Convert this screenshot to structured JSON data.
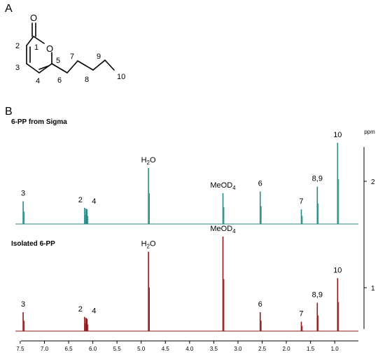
{
  "panels": {
    "a": "A",
    "b": "B"
  },
  "molecule": {
    "atoms": {
      "carbonyl_o": "O",
      "ring_o": "O"
    },
    "numbers": [
      "1",
      "2",
      "3",
      "4",
      "5",
      "6",
      "7",
      "8",
      "9",
      "10"
    ]
  },
  "chart_data": {
    "type": "line",
    "subtype": "nmr-spectrum",
    "xlabel": "ppm",
    "xlim": [
      7.6,
      0.8
    ],
    "x_reversed": true,
    "x_ticks": [
      "7.5",
      "7.0",
      "6.5",
      "6.0",
      "5.5",
      "5.0",
      "4.5",
      "4.0",
      "3.5",
      "3.0",
      "2.5",
      "2.0",
      "1.5",
      "1.0"
    ],
    "tracks": [
      "1",
      "2"
    ],
    "series": [
      {
        "name": "6-PP from Sigma",
        "color": "#2a8a86",
        "peaks": [
          {
            "ppm": 7.44,
            "height": 0.28,
            "label": "3"
          },
          {
            "ppm": 6.17,
            "height": 0.2,
            "label": "2"
          },
          {
            "ppm": 6.14,
            "height": 0.19,
            "label": ""
          },
          {
            "ppm": 6.12,
            "height": 0.18,
            "label": "4"
          },
          {
            "ppm": 4.85,
            "height": 0.69,
            "label": "H2O"
          },
          {
            "ppm": 3.31,
            "height": 0.38,
            "label": "MeOD4"
          },
          {
            "ppm": 2.54,
            "height": 0.4,
            "label": "6"
          },
          {
            "ppm": 1.69,
            "height": 0.18,
            "label": "7"
          },
          {
            "ppm": 1.36,
            "height": 0.46,
            "label": "8,9"
          },
          {
            "ppm": 0.94,
            "height": 1.0,
            "label": "10"
          }
        ]
      },
      {
        "name": "Isolated 6-PP",
        "color": "#8b1a1a",
        "peaks": [
          {
            "ppm": 7.44,
            "height": 0.2,
            "label": "3"
          },
          {
            "ppm": 6.17,
            "height": 0.15,
            "label": "2"
          },
          {
            "ppm": 6.14,
            "height": 0.14,
            "label": ""
          },
          {
            "ppm": 6.12,
            "height": 0.13,
            "label": "4"
          },
          {
            "ppm": 4.85,
            "height": 0.84,
            "label": "H2O"
          },
          {
            "ppm": 3.31,
            "height": 1.0,
            "label": "MeOD4"
          },
          {
            "ppm": 2.54,
            "height": 0.2,
            "label": "6"
          },
          {
            "ppm": 1.69,
            "height": 0.1,
            "label": "7"
          },
          {
            "ppm": 1.36,
            "height": 0.3,
            "label": "8,9"
          },
          {
            "ppm": 0.94,
            "height": 0.56,
            "label": "10"
          }
        ]
      }
    ]
  }
}
